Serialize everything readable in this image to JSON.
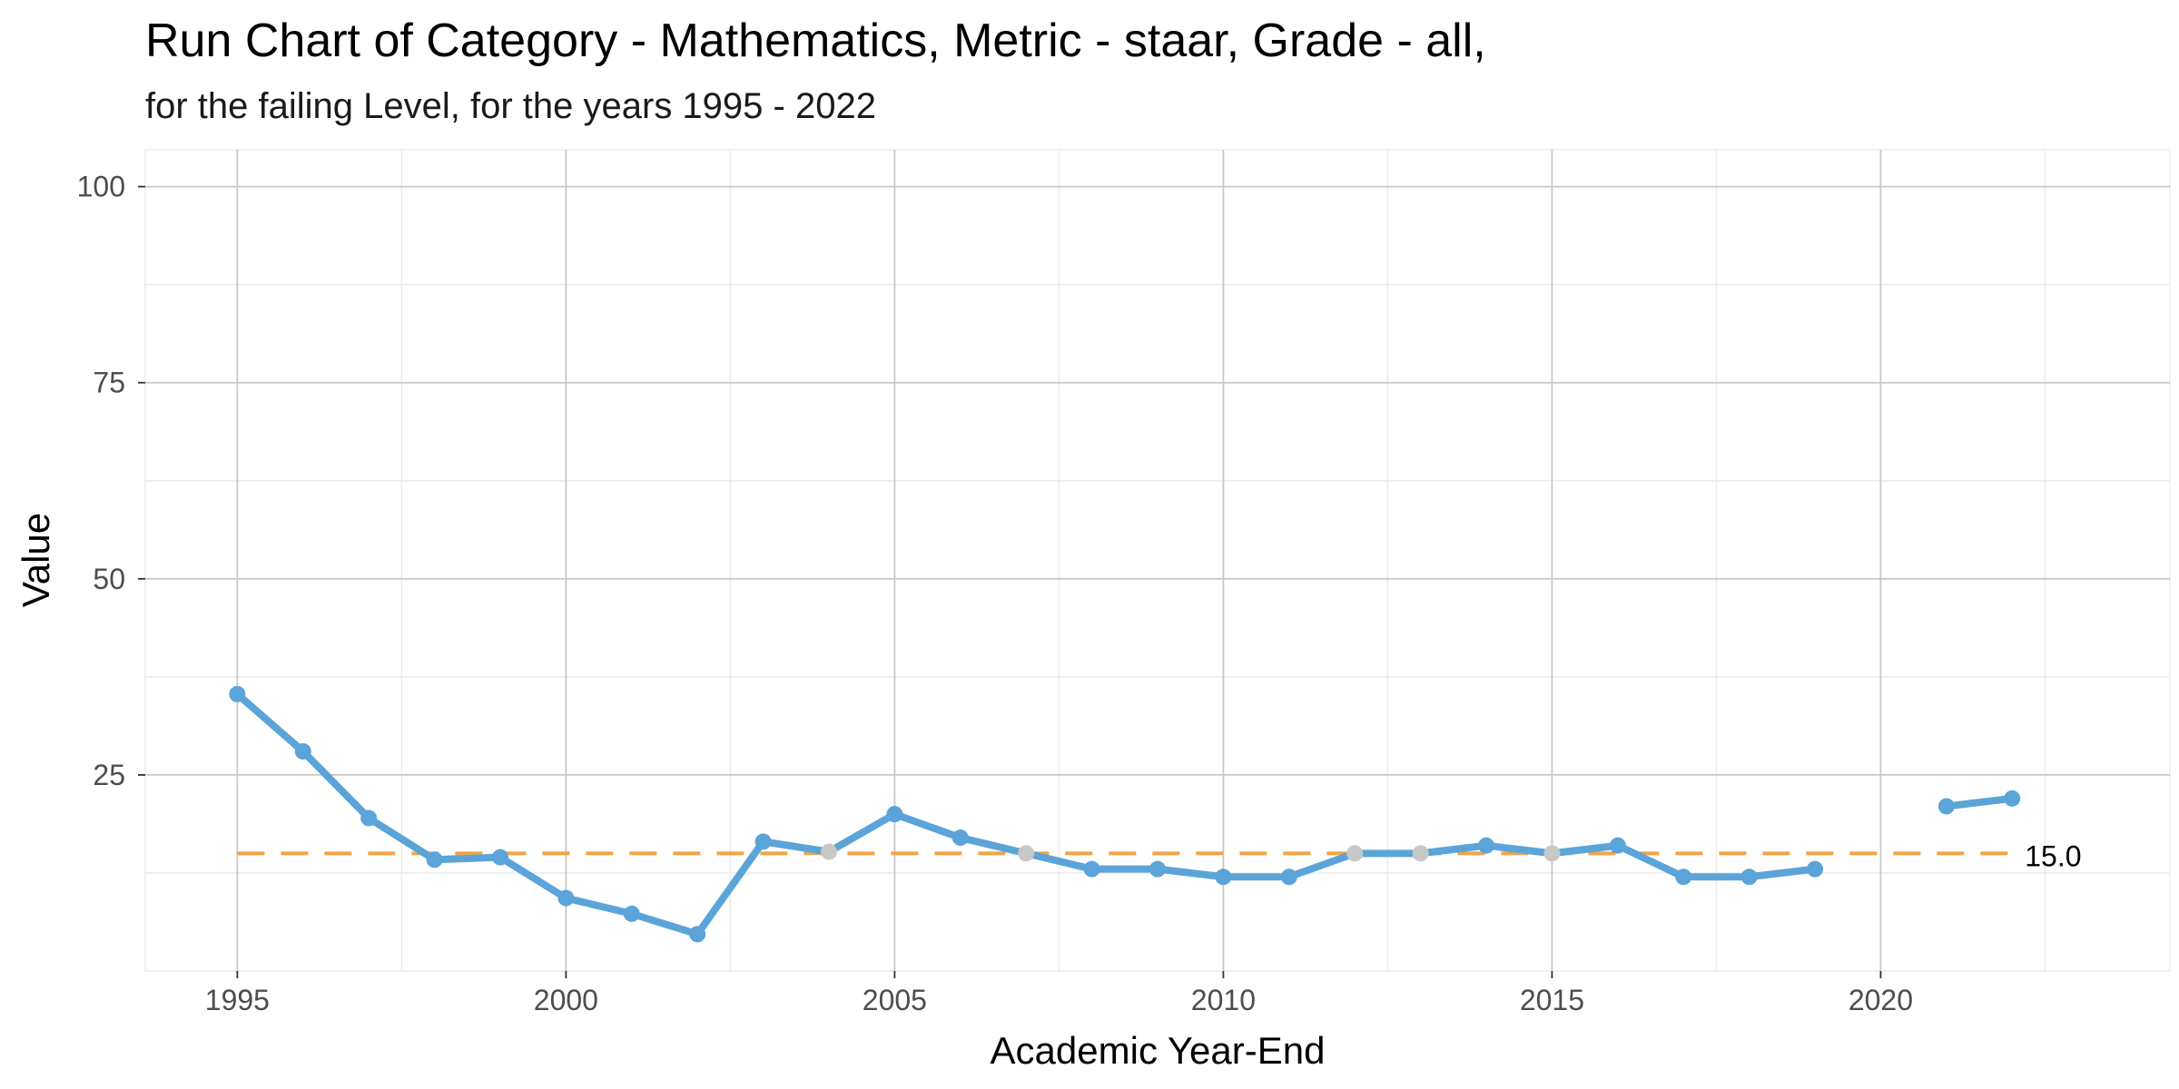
{
  "chart_data": {
    "type": "line",
    "title": "Run Chart of Category - Mathematics, Metric - staar, Grade - all,",
    "subtitle": "for the failing Level, for the years 1995 - 2022",
    "xlabel": "Academic Year-End",
    "ylabel": "Value",
    "xlim": [
      1993.6,
      2024.4
    ],
    "ylim": [
      0,
      104.7
    ],
    "x_ticks": [
      1995,
      2000,
      2005,
      2010,
      2015,
      2020
    ],
    "x_tick_labels": [
      "1995",
      "2000",
      "2005",
      "2010",
      "2015",
      "2020"
    ],
    "y_ticks": [
      25,
      50,
      75,
      100
    ],
    "y_tick_labels": [
      "25",
      "50",
      "75",
      "100"
    ],
    "grid": true,
    "series": [
      {
        "color": "#5ba4d9",
        "segments": [
          {
            "x": [
              1995,
              1996,
              1997,
              1998,
              1999,
              2000,
              2001,
              2002,
              2003,
              2004,
              2005,
              2006,
              2007,
              2008,
              2009,
              2010,
              2011,
              2012,
              2013,
              2014,
              2015,
              2016,
              2017,
              2018,
              2019
            ],
            "y": [
              35.3,
              28.0,
              19.5,
              14.2,
              14.5,
              9.3,
              7.3,
              4.7,
              16.5,
              15.2,
              20.0,
              17.0,
              15.0,
              13.0,
              13.0,
              12.0,
              12.0,
              15.0,
              15.0,
              16.0,
              15.0,
              16.0,
              12.0,
              12.0,
              13.0
            ]
          },
          {
            "x": [
              2021,
              2022
            ],
            "y": [
              21.0,
              22.0
            ]
          }
        ],
        "highlight_color": "#c8c8c8",
        "highlight_points": [
          2004,
          2007,
          2012,
          2013,
          2015
        ]
      }
    ],
    "reference_line": {
      "value": 15.0,
      "label": "15.0",
      "color": "#f2a444",
      "style": "dashed",
      "x_start": 1995,
      "x_end": 2022
    }
  }
}
